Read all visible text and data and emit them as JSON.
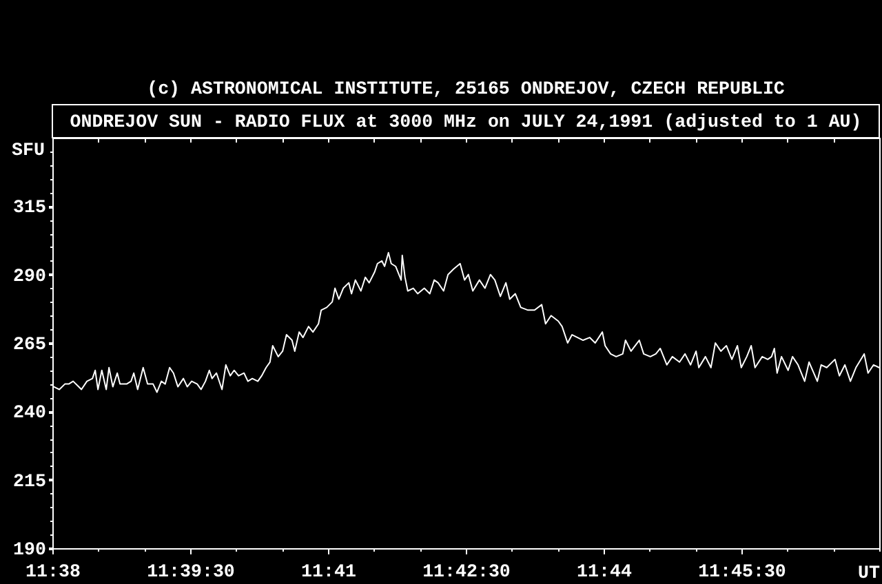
{
  "chart_data": {
    "type": "line",
    "title": "ONDREJOV SUN - RADIO FLUX at 3000 MHz on JULY 24,1991 (adjusted to 1 AU)",
    "annotations": [
      "(c) ASTRONOMICAL INSTITUTE, 25165 ONDREJOV, CZECH REPUBLIC"
    ],
    "xlabel": "UT",
    "ylabel": "SFU",
    "x": [
      11.6336,
      11.6346,
      11.6356,
      11.6363,
      11.6371,
      11.6381,
      11.6386,
      11.6396,
      11.6406,
      11.6411,
      11.6416,
      11.6423,
      11.6431,
      11.6436,
      11.6443,
      11.6451,
      11.6456,
      11.6468,
      11.6476,
      11.6481,
      11.6488,
      11.6498,
      11.6506,
      11.6516,
      11.6523,
      11.6531,
      11.6538,
      11.6546,
      11.6553,
      11.6561,
      11.6571,
      11.6578,
      11.6586,
      11.6596,
      11.6603,
      11.6611,
      11.6618,
      11.6623,
      11.6631,
      11.6641,
      11.6648,
      11.6656,
      11.6663,
      11.6671,
      11.6681,
      11.6688,
      11.6696,
      11.6706,
      11.6713,
      11.6721,
      11.6728,
      11.6733,
      11.6743,
      11.6751,
      11.6758,
      11.6768,
      11.6773,
      11.6781,
      11.6788,
      11.6798,
      11.6806,
      11.6816,
      11.6821,
      11.6831,
      11.6841,
      11.6846,
      11.6853,
      11.6861,
      11.6871,
      11.6876,
      11.6883,
      11.6893,
      11.6901,
      11.6908,
      11.6918,
      11.6923,
      11.6931,
      11.6936,
      11.6943,
      11.6948,
      11.6956,
      11.6966,
      11.6968,
      11.6973,
      11.6978,
      11.6988,
      11.6996,
      11.7008,
      11.7018,
      11.7026,
      11.7033,
      11.7043,
      11.7051,
      11.7061,
      11.7073,
      11.7081,
      11.7088,
      11.7096,
      11.7108,
      11.7118,
      11.7128,
      11.7136,
      11.7146,
      11.7156,
      11.7163,
      11.7173,
      11.7183,
      11.7196,
      11.7208,
      11.7221,
      11.7228,
      11.7238,
      11.7251,
      11.7258,
      11.7268,
      11.7276,
      11.7286,
      11.7296,
      11.7308,
      11.7318,
      11.7331,
      11.7336,
      11.7346,
      11.7356,
      11.7368,
      11.7373,
      11.7383,
      11.7398,
      11.7406,
      11.7418,
      11.7428,
      11.7436,
      11.7448,
      11.7458,
      11.7471,
      11.7481,
      11.7491,
      11.7501,
      11.7506,
      11.7518,
      11.7528,
      11.7536,
      11.7546,
      11.7556,
      11.7566,
      11.7576,
      11.7583,
      11.7593,
      11.7601,
      11.7608,
      11.7621,
      11.7631,
      11.7638,
      11.7643,
      11.7648,
      11.7656,
      11.7668,
      11.7676,
      11.7686,
      11.7698,
      11.7706,
      11.7721,
      11.7728,
      11.7738,
      11.7753,
      11.7761,
      11.7771,
      11.7781,
      11.7791,
      11.7806,
      11.7813,
      11.7823,
      11.7833
    ],
    "series": [
      {
        "color": "#ffffff",
        "values": [
          249,
          248,
          250,
          250,
          251,
          249,
          248,
          251,
          252,
          255,
          248,
          255,
          248,
          256,
          249,
          254,
          250,
          250,
          251,
          254,
          248,
          256,
          250,
          250,
          247,
          251,
          250,
          256,
          254,
          249,
          252,
          249,
          251,
          250,
          248,
          251,
          255,
          252,
          254,
          248,
          257,
          253,
          255,
          253,
          254,
          251,
          252,
          251,
          253,
          256,
          258,
          264,
          260,
          262,
          268,
          266,
          262,
          269,
          267,
          271,
          269,
          272,
          277,
          278,
          280,
          285,
          281,
          285,
          287,
          283,
          288,
          284,
          289,
          287,
          291,
          294,
          295,
          293,
          298,
          294,
          293,
          288,
          297,
          289,
          284,
          285,
          283,
          285,
          283,
          288,
          287,
          284,
          290,
          292,
          294,
          288,
          290,
          284,
          288,
          285,
          290,
          288,
          282,
          287,
          281,
          283,
          278,
          277,
          277,
          279,
          272,
          275,
          273,
          271,
          265,
          268,
          267,
          266,
          267,
          265,
          269,
          264,
          261,
          260,
          261,
          266,
          262,
          266,
          261,
          260,
          261,
          263,
          257,
          260,
          258,
          261,
          257,
          262,
          256,
          260,
          256,
          265,
          262,
          264,
          259,
          264,
          256,
          260,
          264,
          256,
          260,
          259,
          260,
          263,
          254,
          260,
          255,
          260,
          257,
          251,
          258,
          251,
          257,
          256,
          259,
          253,
          257,
          251,
          256,
          261,
          254,
          257,
          256
        ]
      }
    ],
    "xlim": [
      11.63333,
      11.78333
    ],
    "xticks": [
      {
        "value": 11.63333,
        "label": "11:38"
      },
      {
        "value": 11.64167,
        "label": null
      },
      {
        "value": 11.65,
        "label": null
      },
      {
        "value": 11.65833,
        "label": "11:39:30"
      },
      {
        "value": 11.66667,
        "label": null
      },
      {
        "value": 11.675,
        "label": null
      },
      {
        "value": 11.68333,
        "label": "11:41"
      },
      {
        "value": 11.69167,
        "label": null
      },
      {
        "value": 11.7,
        "label": null
      },
      {
        "value": 11.70833,
        "label": "11:42:30"
      },
      {
        "value": 11.71667,
        "label": null
      },
      {
        "value": 11.725,
        "label": null
      },
      {
        "value": 11.73333,
        "label": "11:44"
      },
      {
        "value": 11.74167,
        "label": null
      },
      {
        "value": 11.75,
        "label": null
      },
      {
        "value": 11.75833,
        "label": "11:45:30"
      },
      {
        "value": 11.76667,
        "label": null
      },
      {
        "value": 11.775,
        "label": null
      },
      {
        "value": 11.78333,
        "label": null
      }
    ],
    "ylim": [
      190,
      340
    ],
    "yticks": [
      190,
      {
        "value": 195,
        "label": null
      },
      {
        "value": 200,
        "label": null
      },
      {
        "value": 205,
        "label": null
      },
      {
        "value": 210,
        "label": null
      },
      215,
      {
        "value": 220,
        "label": null
      },
      {
        "value": 225,
        "label": null
      },
      {
        "value": 230,
        "label": null
      },
      {
        "value": 235,
        "label": null
      },
      240,
      {
        "value": 245,
        "label": null
      },
      {
        "value": 250,
        "label": null
      },
      {
        "value": 255,
        "label": null
      },
      {
        "value": 260,
        "label": null
      },
      265,
      {
        "value": 270,
        "label": null
      },
      {
        "value": 275,
        "label": null
      },
      {
        "value": 280,
        "label": null
      },
      {
        "value": 285,
        "label": null
      },
      290,
      {
        "value": 295,
        "label": null
      },
      {
        "value": 300,
        "label": null
      },
      {
        "value": 305,
        "label": null
      },
      {
        "value": 310,
        "label": null
      },
      315,
      {
        "value": 320,
        "label": null
      },
      {
        "value": 325,
        "label": null
      },
      {
        "value": 330,
        "label": null
      },
      {
        "value": 335,
        "label": null
      }
    ]
  }
}
